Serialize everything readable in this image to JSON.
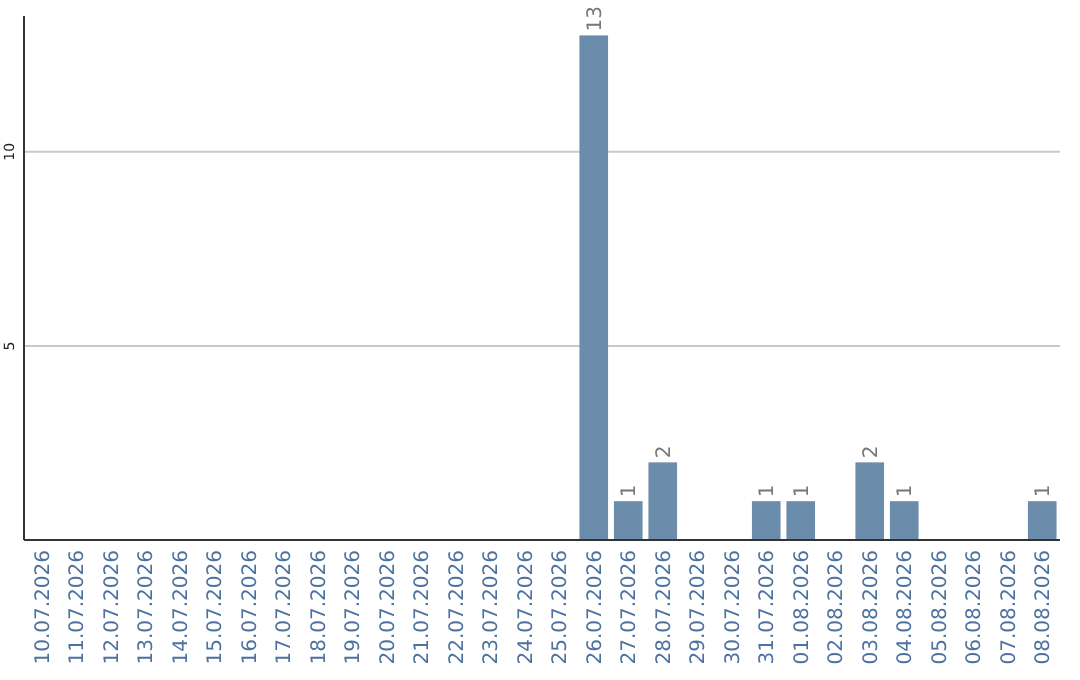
{
  "chart_data": {
    "type": "bar",
    "categories": [
      "10.07.2026",
      "11.07.2026",
      "12.07.2026",
      "13.07.2026",
      "14.07.2026",
      "15.07.2026",
      "16.07.2026",
      "17.07.2026",
      "18.07.2026",
      "19.07.2026",
      "20.07.2026",
      "21.07.2026",
      "22.07.2026",
      "23.07.2026",
      "24.07.2026",
      "25.07.2026",
      "26.07.2026",
      "27.07.2026",
      "28.07.2026",
      "29.07.2026",
      "30.07.2026",
      "31.07.2026",
      "01.08.2026",
      "02.08.2026",
      "03.08.2026",
      "04.08.2026",
      "05.08.2026",
      "06.08.2026",
      "07.08.2026",
      "08.08.2026"
    ],
    "values": [
      0,
      0,
      0,
      0,
      0,
      0,
      0,
      0,
      0,
      0,
      0,
      0,
      0,
      0,
      0,
      0,
      13,
      1,
      2,
      0,
      0,
      1,
      1,
      0,
      2,
      1,
      0,
      0,
      0,
      1
    ],
    "value_labels": [
      null,
      null,
      null,
      null,
      null,
      null,
      null,
      null,
      null,
      null,
      null,
      null,
      null,
      null,
      null,
      null,
      "13",
      "1",
      "2",
      null,
      null,
      "1",
      "1",
      null,
      "2",
      "1",
      null,
      null,
      null,
      "1"
    ],
    "color": "#6b8cab",
    "ylim": [
      0,
      13.5
    ],
    "yticks": [
      5,
      10
    ],
    "grid": "y"
  }
}
